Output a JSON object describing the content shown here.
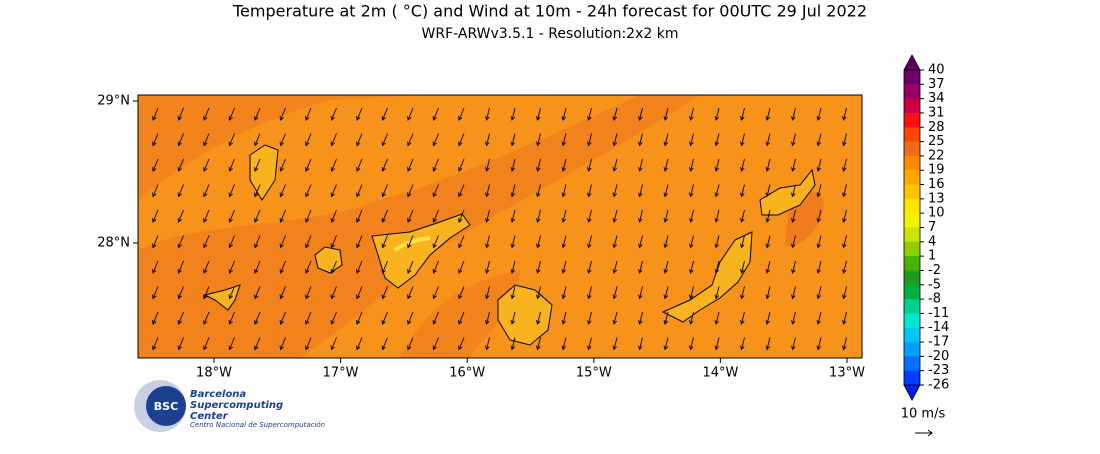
{
  "header": {
    "title": "Temperature at 2m ( °C) and Wind at 10m - 24h forecast for 00UTC 29 Jul 2022",
    "subtitle": "WRF-ARWv3.5.1 - Resolution:2x2 km"
  },
  "map": {
    "x_ticks": [
      "18°W",
      "17°W",
      "16°W",
      "15°W",
      "14°W",
      "13°W"
    ],
    "y_ticks": [
      "29°N",
      "28°N"
    ]
  },
  "colorbar": {
    "labels": [
      40,
      37,
      34,
      31,
      28,
      25,
      22,
      19,
      16,
      13,
      10,
      7,
      4,
      1,
      -2,
      -5,
      -8,
      -11,
      -14,
      -17,
      -20,
      -23,
      -26
    ],
    "colors": [
      "#6e006e",
      "#9a0062",
      "#cc0040",
      "#ff1010",
      "#ff4500",
      "#f26a1a",
      "#ff8c00",
      "#ffa600",
      "#ffc400",
      "#ffe600",
      "#f4f400",
      "#c8e400",
      "#8ccc00",
      "#4cb400",
      "#1e9e1e",
      "#00b040",
      "#00d090",
      "#00e8d0",
      "#00c8f0",
      "#00a0ff",
      "#0070ff",
      "#0040ff"
    ],
    "over_color": "#600060",
    "under_color": "#0020ff"
  },
  "logo": {
    "lines": [
      "Barcelona",
      "Supercomputing",
      "Center"
    ],
    "tagline": "Centro Nacional de Supercomputación",
    "badge": "BSC"
  },
  "wind_key": {
    "label": "10 m/s"
  }
}
